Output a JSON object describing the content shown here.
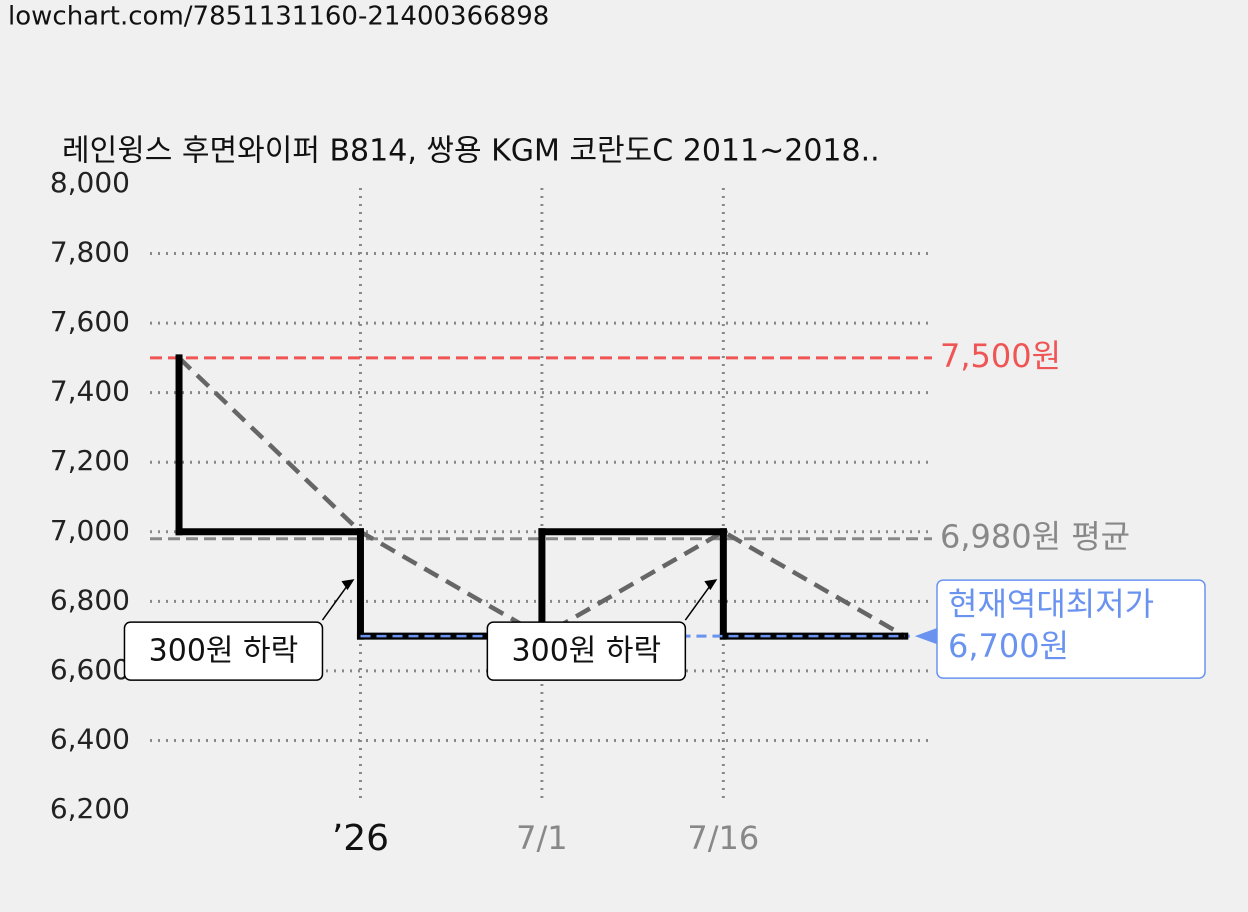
{
  "source": "lowchart.com/7851131160-21400366898",
  "chart_data": {
    "type": "line",
    "title": "레인윙스 후면와이퍼 B814, 쌍용 KGM 코란도C 2011~2018..",
    "x": [
      -1,
      0,
      1,
      2,
      3
    ],
    "series": [
      {
        "color": "#000000",
        "values": [
          7500,
          7000,
          6700,
          7000,
          6700
        ]
      }
    ],
    "trend_color": "#666666",
    "xlim": [
      -1.16,
      3.15
    ],
    "xticks": [
      {
        "value": 0,
        "label": "’26"
      },
      {
        "value": 1,
        "label": "7/1"
      },
      {
        "value": 2,
        "label": "7/16"
      }
    ],
    "ylim": [
      6200,
      8000
    ],
    "yticks": [
      {
        "value": 6200,
        "label": "6,200"
      },
      {
        "value": 6400,
        "label": "6,400"
      },
      {
        "value": 6600,
        "label": "6,600"
      },
      {
        "value": 6800,
        "label": "6,800"
      },
      {
        "value": 7000,
        "label": "7,000"
      },
      {
        "value": 7200,
        "label": "7,200"
      },
      {
        "value": 7400,
        "label": "7,400"
      },
      {
        "value": 7600,
        "label": "7,600"
      },
      {
        "value": 7800,
        "label": "7,800"
      },
      {
        "value": 8000,
        "label": "8,000"
      }
    ],
    "grid": true,
    "reference_lines": [
      {
        "value": 7500,
        "label": "7,500원",
        "color": "#f05555"
      },
      {
        "value": 6980,
        "label": "6,980원 평균",
        "color": "#888888"
      },
      {
        "value": 6700,
        "label": "6,700원",
        "note": "현재역대최저가",
        "color": "#6a93f0"
      }
    ],
    "annotations": [
      "300원 하락",
      "300원 하락"
    ]
  }
}
